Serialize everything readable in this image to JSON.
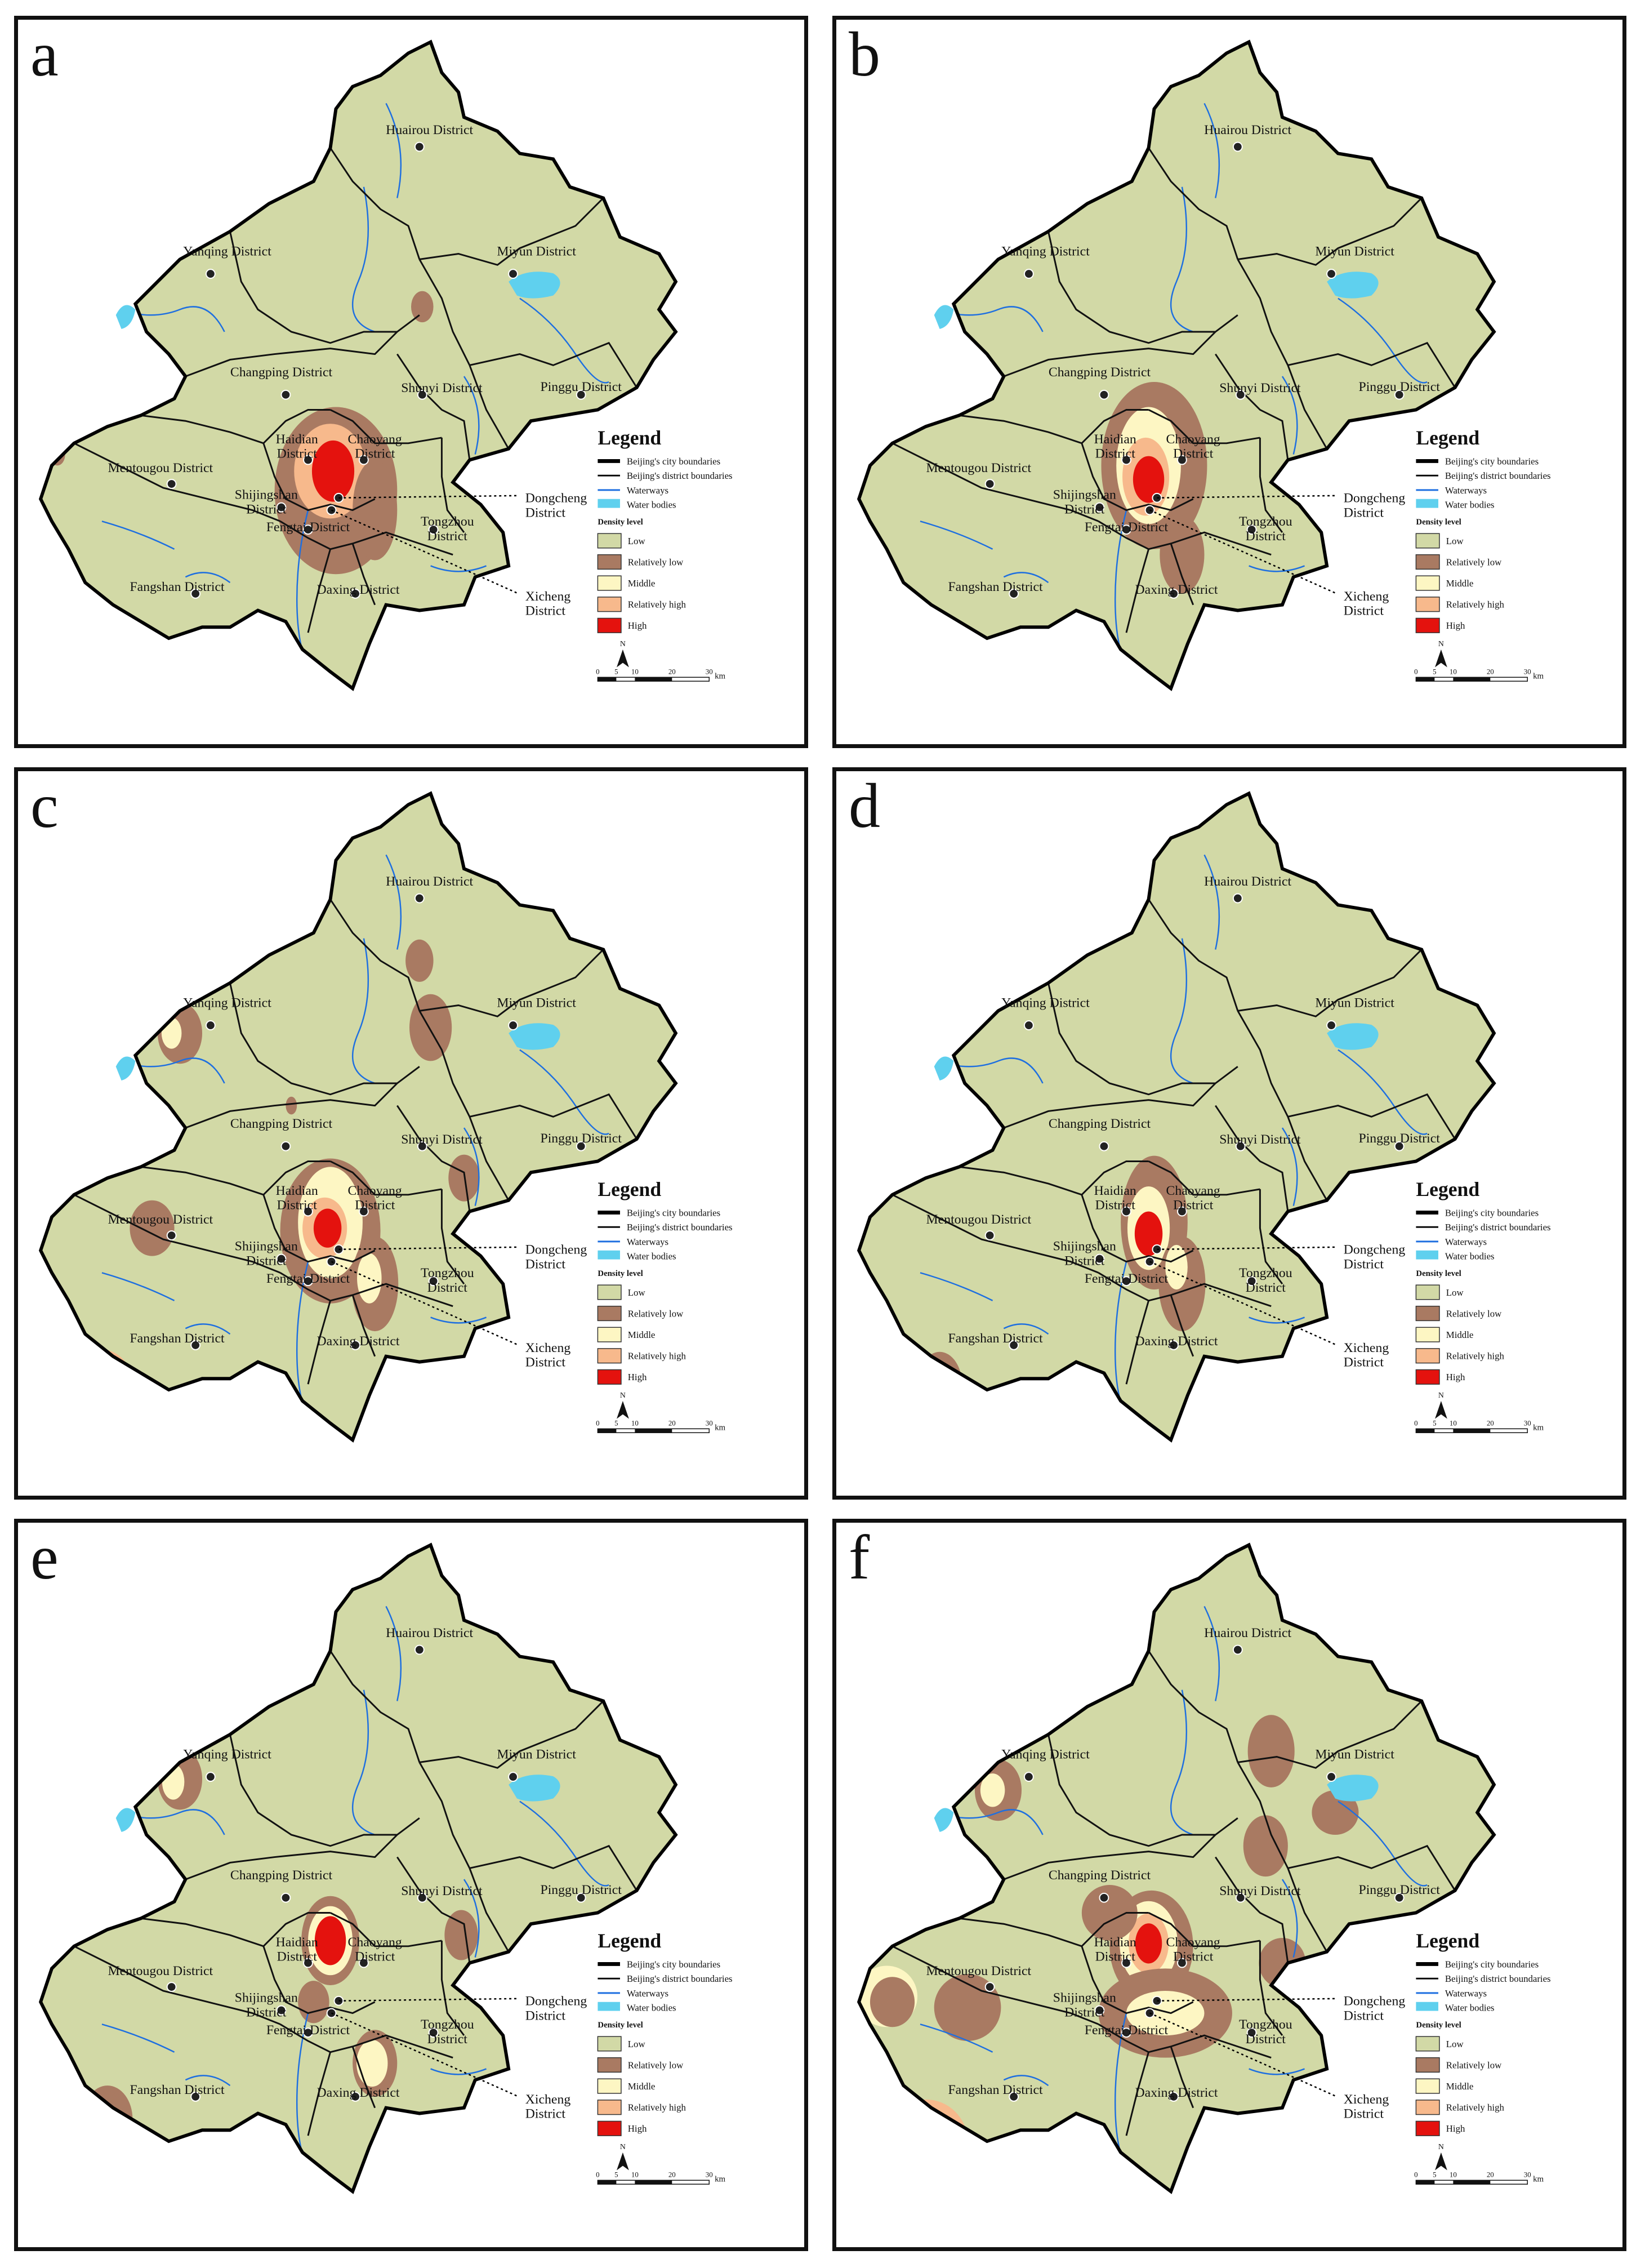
{
  "districts": [
    {
      "id": "huairou",
      "label": "Huairou District"
    },
    {
      "id": "miyun",
      "label": "Miyun District"
    },
    {
      "id": "yanqing",
      "label": "Yanqing District"
    },
    {
      "id": "changping",
      "label": "Changping District"
    },
    {
      "id": "shunyi",
      "label": "Shunyi District"
    },
    {
      "id": "pinggu",
      "label": "Pinggu District"
    },
    {
      "id": "haidian",
      "label": "Haidian District"
    },
    {
      "id": "chaoyang",
      "label": "Chaoyang District"
    },
    {
      "id": "mentougou",
      "label": "Mentougou District"
    },
    {
      "id": "shijingshan",
      "label": "Shijingshan District"
    },
    {
      "id": "fengtai",
      "label": "Fengtai District"
    },
    {
      "id": "tongzhou",
      "label": "Tongzhou District"
    },
    {
      "id": "fangshan",
      "label": "Fangshan District"
    },
    {
      "id": "daxing",
      "label": "Daxing District"
    },
    {
      "id": "dongcheng",
      "label": "Dongcheng District"
    },
    {
      "id": "xicheng",
      "label": "Xicheng District"
    }
  ],
  "legend": {
    "title": "Legend",
    "lines": [
      {
        "label": "Beijing's city boundaries",
        "color": "#000000"
      },
      {
        "label": "Beijing's district boundaries",
        "color": "#000000"
      },
      {
        "label": "Waterways",
        "color": "#1e6fe0"
      },
      {
        "label": "Water bodies",
        "color": "#5fd0ee"
      }
    ],
    "density_title": "Density level",
    "density": [
      {
        "label": "Low",
        "color": "#d2d9a6"
      },
      {
        "label": "Relatively low",
        "color": "#a97a62"
      },
      {
        "label": "Middle",
        "color": "#fdf6c3"
      },
      {
        "label": "Relatively high",
        "color": "#f7b98c"
      },
      {
        "label": "High",
        "color": "#e4120e"
      }
    ],
    "north": "N",
    "scale_ticks": [
      "0",
      "5",
      "10",
      "20",
      "30"
    ],
    "scale_unit": "km"
  },
  "panels": [
    {
      "label": "a"
    },
    {
      "label": "b"
    },
    {
      "label": "c"
    },
    {
      "label": "d"
    },
    {
      "label": "e"
    },
    {
      "label": "f"
    }
  ]
}
